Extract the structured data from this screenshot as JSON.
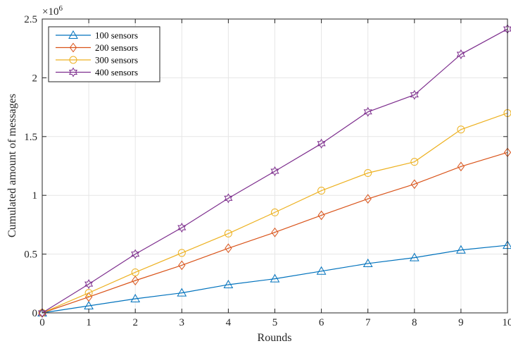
{
  "chart_data": {
    "type": "line",
    "xlabel": "Rounds",
    "ylabel": "Cumulated amount of messages",
    "x": [
      0,
      1,
      2,
      3,
      4,
      5,
      6,
      7,
      8,
      9,
      10
    ],
    "xlim": [
      0,
      10
    ],
    "ylim": [
      0,
      2500000
    ],
    "x_ticks": [
      "0",
      "1",
      "2",
      "3",
      "4",
      "5",
      "6",
      "7",
      "8",
      "9",
      "10"
    ],
    "y_ticks": [
      "0",
      "0.5",
      "1",
      "1.5",
      "2",
      "2.5"
    ],
    "y_tick_values": [
      0,
      500000,
      1000000,
      1500000,
      2000000,
      2500000
    ],
    "y_exponent": {
      "base": "×10",
      "power": "6"
    },
    "grid": true,
    "legend_position": "top-left",
    "series": [
      {
        "name": "100 sensors",
        "color": "#0072BD",
        "marker": "triangle",
        "values": [
          0,
          60000,
          120000,
          170000,
          240000,
          290000,
          355000,
          420000,
          470000,
          535000,
          575000
        ]
      },
      {
        "name": "200 sensors",
        "color": "#D95319",
        "marker": "diamond",
        "values": [
          0,
          135000,
          275000,
          405000,
          550000,
          685000,
          830000,
          970000,
          1095000,
          1245000,
          1365000
        ]
      },
      {
        "name": "300 sensors",
        "color": "#EDB120",
        "marker": "circle",
        "values": [
          0,
          170000,
          345000,
          510000,
          675000,
          855000,
          1040000,
          1190000,
          1285000,
          1560000,
          1700000
        ]
      },
      {
        "name": "400 sensors",
        "color": "#7E2F8E",
        "marker": "hexagram",
        "values": [
          0,
          245000,
          500000,
          725000,
          975000,
          1205000,
          1440000,
          1710000,
          1855000,
          2200000,
          2415000
        ]
      }
    ]
  }
}
